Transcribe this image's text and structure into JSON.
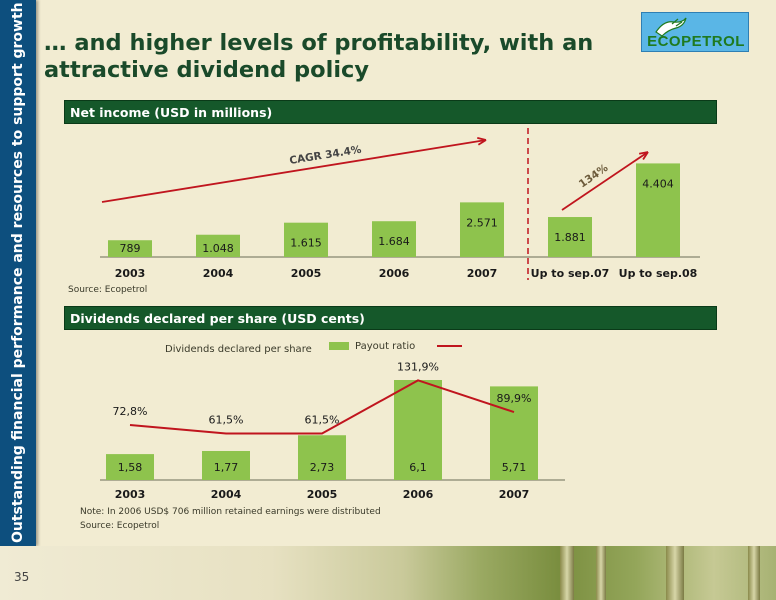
{
  "sidebar": {
    "text": "Outstanding financial performance and resources to support growth"
  },
  "title": "… and higher levels of profitability, with an attractive dividend policy",
  "logo": {
    "text": "ECOPETROL"
  },
  "page_number": "35",
  "colors": {
    "bar": "#8ec34d",
    "line": "#c0151e",
    "header": "#15582a",
    "sidebar": "#0d4f7e",
    "background": "#f2ecd2"
  },
  "chart_data": [
    {
      "type": "bar",
      "title": "Net income (USD in millions)",
      "categories": [
        "2003",
        "2004",
        "2005",
        "2006",
        "2007",
        "Up to sep.07",
        "Up to sep.08"
      ],
      "values": [
        789,
        1048,
        1615,
        1684,
        2571,
        1881,
        4404
      ],
      "value_labels": [
        "789",
        "1.048",
        "1.615",
        "1.684",
        "2.571",
        "1.881",
        "4.404"
      ],
      "annotations": [
        {
          "text": "CAGR 34.4%",
          "from": "2003",
          "to": "2007"
        },
        {
          "text": "134%",
          "from": "Up to sep.07",
          "to": "Up to sep.08"
        }
      ],
      "ylim": [
        0,
        4800
      ],
      "source": "Source: Ecopetrol"
    },
    {
      "type": "bar",
      "title": "Dividends declared per share (USD cents)",
      "categories": [
        "2003",
        "2004",
        "2005",
        "2006",
        "2007"
      ],
      "series": [
        {
          "name": "Dividends declared per share",
          "type": "bar",
          "values": [
            1.58,
            1.77,
            2.73,
            6.1,
            5.71
          ],
          "labels": [
            "1,58",
            "1,77",
            "2,73",
            "6,1",
            "5,71"
          ]
        },
        {
          "name": "Payout ratio",
          "type": "line",
          "values": [
            72.8,
            61.5,
            61.5,
            131.9,
            89.9
          ],
          "labels": [
            "72,8%",
            "61,5%",
            "61,5%",
            "131,9%",
            "89,9%"
          ]
        }
      ],
      "ylim": [
        0,
        6.1
      ],
      "y2lim": [
        0,
        135
      ],
      "legend": "top",
      "note": "Note: In 2006 USD$ 706 million retained earnings were distributed",
      "source": "Source: Ecopetrol"
    }
  ]
}
